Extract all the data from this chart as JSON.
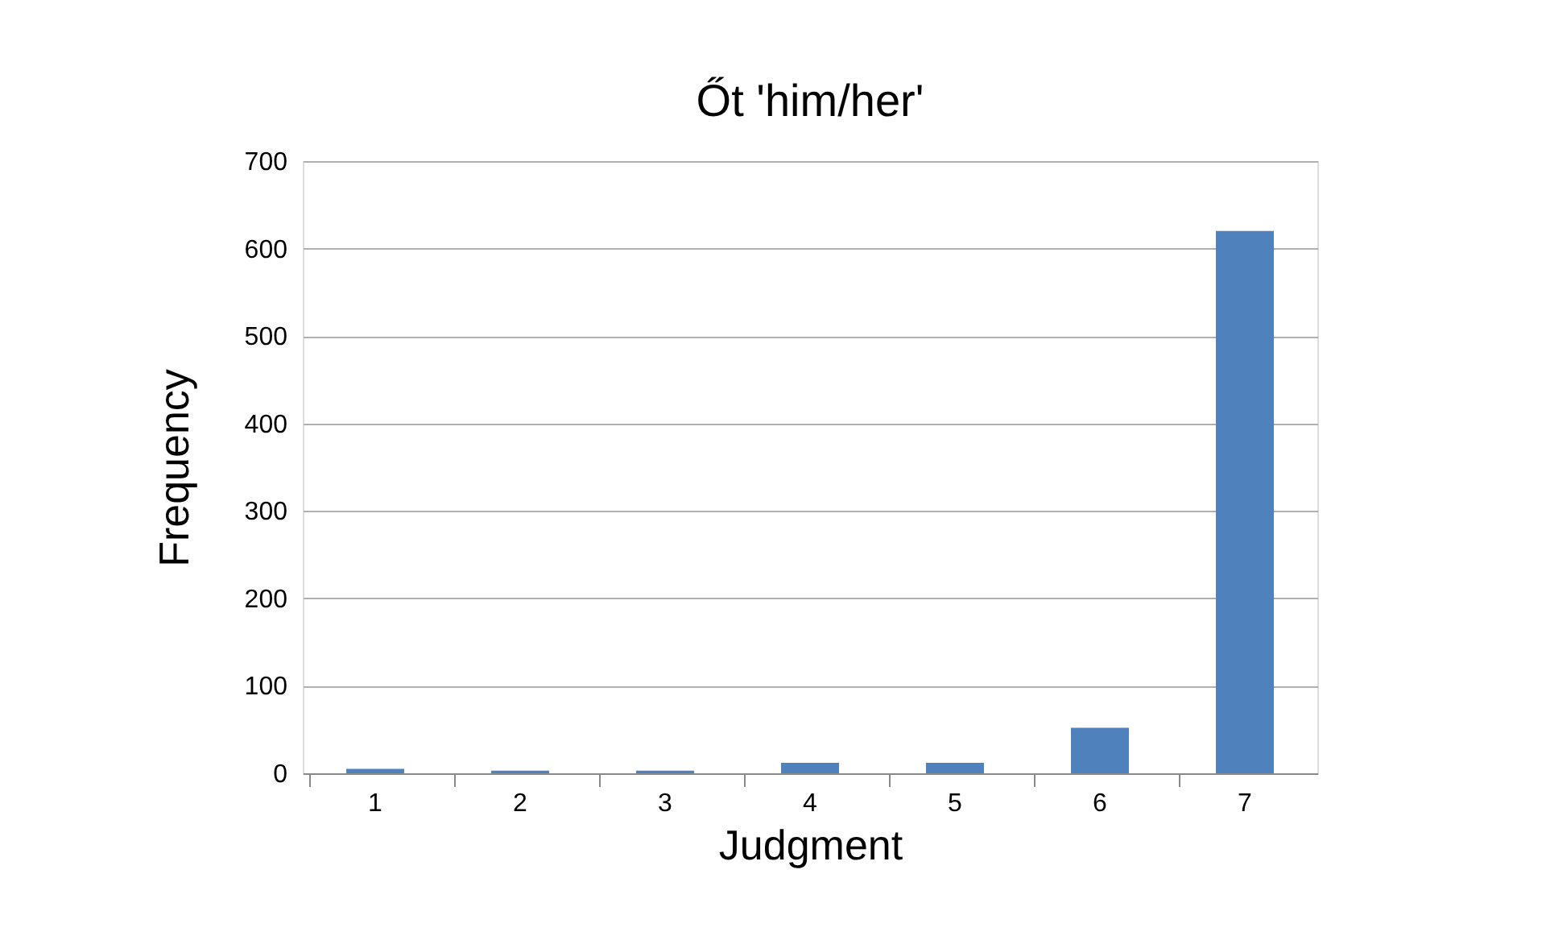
{
  "chart_data": {
    "type": "bar",
    "title": "Őt 'him/her'",
    "xlabel": "Judgment",
    "ylabel": "Frequency",
    "categories": [
      "1",
      "2",
      "3",
      "4",
      "5",
      "6",
      "7"
    ],
    "values": [
      5,
      3,
      3,
      12,
      12,
      52,
      620
    ],
    "color": "#4f81bd",
    "ylim": [
      0,
      700
    ],
    "yticks": [
      0,
      100,
      200,
      300,
      400,
      500,
      600,
      700
    ],
    "grid": "y"
  }
}
